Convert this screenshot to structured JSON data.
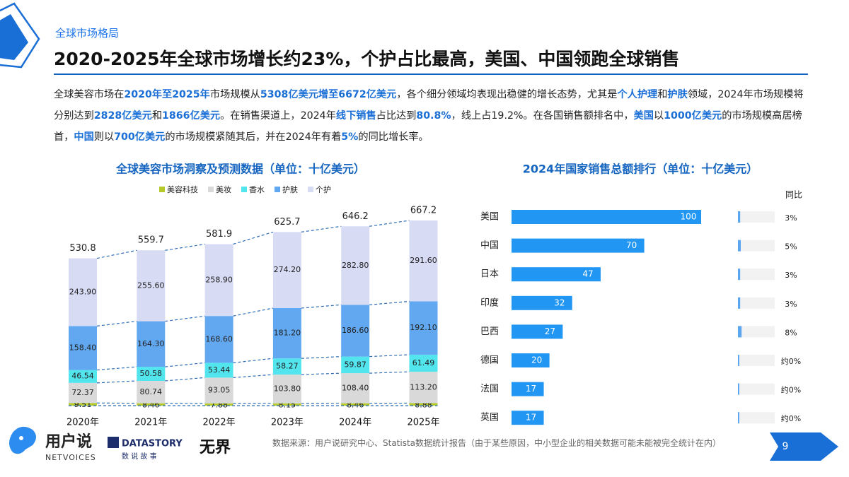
{
  "section": "全球市场格局",
  "title": "2020-2025年全球市场增长约23%，个护占比最高，美国、中国领跑全球销售",
  "summary": [
    {
      "text": "全球美容市场在",
      "emphasis": false
    },
    {
      "text": "2020年至2025年",
      "emphasis": true
    },
    {
      "text": "市场规模从",
      "emphasis": false
    },
    {
      "text": "5308亿美元增至6672亿美元",
      "emphasis": true
    },
    {
      "text": "，各个细分领域均表现出稳健的增长态势，尤其是",
      "emphasis": false
    },
    {
      "text": "个人护理",
      "emphasis": true
    },
    {
      "text": "和",
      "emphasis": false
    },
    {
      "text": "护肤",
      "emphasis": true
    },
    {
      "text": "领域，2024年市场规模将分别达到",
      "emphasis": false
    },
    {
      "text": "2828亿美元",
      "emphasis": true
    },
    {
      "text": "和",
      "emphasis": false
    },
    {
      "text": "1866亿美元",
      "emphasis": true
    },
    {
      "text": "。在销售渠道上，2024年",
      "emphasis": false
    },
    {
      "text": "线下销售",
      "emphasis": true
    },
    {
      "text": "占比达到",
      "emphasis": false
    },
    {
      "text": "80.8%",
      "emphasis": true
    },
    {
      "text": "，线上占19.2%。在各国销售额排名中，",
      "emphasis": false
    },
    {
      "text": "美国",
      "emphasis": true
    },
    {
      "text": "以",
      "emphasis": false
    },
    {
      "text": "1000亿美元",
      "emphasis": true
    },
    {
      "text": "的市场规模高居榜首，",
      "emphasis": false
    },
    {
      "text": "中国",
      "emphasis": true
    },
    {
      "text": "则以",
      "emphasis": false
    },
    {
      "text": "700亿美元",
      "emphasis": true
    },
    {
      "text": "的市场规模紧随其后，并在2024年有着",
      "emphasis": false
    },
    {
      "text": "5%",
      "emphasis": true
    },
    {
      "text": "的同比增长率。",
      "emphasis": false
    }
  ],
  "chart_data": [
    {
      "type": "stacked_bar",
      "title": "全球美容市场洞察及预测数据（单位：十亿美元）",
      "categories": [
        "2020年",
        "2021年",
        "2022年",
        "2023年",
        "2024年",
        "2025年"
      ],
      "series": [
        {
          "name": "美容科技",
          "color": "#b5c92a",
          "values": [
            9.51,
            8.46,
            7.88,
            8.15,
            8.46,
            8.88
          ],
          "value_labels": [
            "9.51",
            "8.46",
            "7.88",
            "8.15",
            "8.46",
            "8.88"
          ]
        },
        {
          "name": "美妆",
          "color": "#d9d9d9",
          "values": [
            72.37,
            80.74,
            93.05,
            103.8,
            108.4,
            113.2
          ],
          "value_labels": [
            "72.37",
            "80.74",
            "93.05",
            "103.80",
            "108.40",
            "113.20"
          ]
        },
        {
          "name": "香水",
          "color": "#52e5ee",
          "values": [
            46.54,
            50.58,
            53.44,
            58.27,
            59.87,
            61.49
          ],
          "value_labels": [
            "46.54",
            "50.58",
            "53.44",
            "58.27",
            "59.87",
            "61.49"
          ]
        },
        {
          "name": "护肤",
          "color": "#62a8f0",
          "values": [
            158.4,
            164.3,
            168.6,
            181.2,
            186.6,
            192.1
          ],
          "value_labels": [
            "158.40",
            "164.30",
            "168.60",
            "181.20",
            "186.60",
            "192.10"
          ]
        },
        {
          "name": "个护",
          "color": "#d8dbf4",
          "values": [
            243.9,
            255.6,
            258.9,
            274.2,
            282.8,
            291.6
          ],
          "value_labels": [
            "243.90",
            "255.60",
            "258.90",
            "274.20",
            "282.80",
            "291.60"
          ]
        }
      ],
      "totals": [
        530.8,
        559.7,
        581.9,
        625.7,
        646.2,
        667.2
      ]
    },
    {
      "type": "horizontal_bar",
      "title": "2024年国家销售总额排行（单位：十亿美元）",
      "categories": [
        "美国",
        "中国",
        "日本",
        "印度",
        "巴西",
        "德国",
        "法国",
        "英国"
      ],
      "series": [
        {
          "color": "#2196f3",
          "values": [
            100,
            70,
            47,
            32,
            27,
            20,
            17,
            17
          ]
        },
        {
          "name": "同比",
          "color": "#5aa6f0",
          "values": [
            3,
            5,
            3,
            3,
            8,
            0,
            0,
            0
          ],
          "value_labels": [
            "3%",
            "5%",
            "3%",
            "3%",
            "8%",
            "约0%",
            "约0%",
            "约0%"
          ]
        }
      ]
    }
  ],
  "footer": {
    "brand": "用户说",
    "brand_en": "NETVOICES",
    "partner": "DATASTORY",
    "partner_cn": "数 说 故 事",
    "partner2": "无界",
    "source": "数据来源：用户说研究中心、Statista数据统计报告（由于某些原因，中小型企业的相关数据可能未能被完全统计在内）",
    "page": "9"
  }
}
